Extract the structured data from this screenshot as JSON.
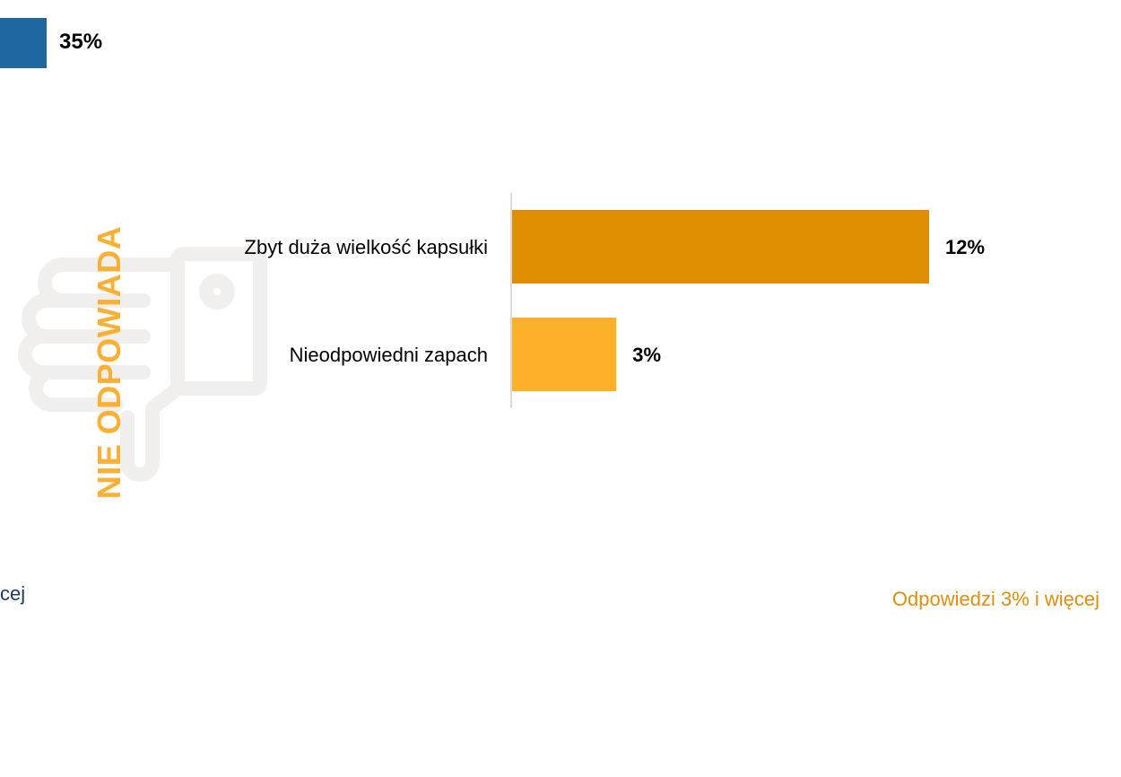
{
  "top_partial": {
    "value": "35%",
    "bar_color": "#1f67a0"
  },
  "heading": "NIE ODPOWIADA",
  "heading_color": "#fbb034",
  "icon": "thumbs-down-icon",
  "chart_data": {
    "type": "bar",
    "orientation": "horizontal",
    "categories": [
      "Zbyt duża wielkość kapsułki",
      "Nieodpowiedni zapach"
    ],
    "values": [
      12,
      3
    ],
    "value_labels": [
      "12%",
      "3%"
    ],
    "colors": [
      "#de8e00",
      "#fdb12b"
    ],
    "xlim": [
      0,
      15
    ],
    "grid": false,
    "legend": "none"
  },
  "footnotes": {
    "left": "cej",
    "right": "Odpowiedzi 3% i więcej",
    "right_color": "#e08e0b"
  }
}
